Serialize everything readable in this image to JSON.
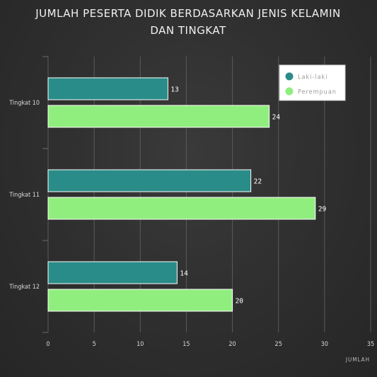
{
  "chart_data": {
    "type": "bar",
    "orientation": "horizontal",
    "title_lines": [
      "JUMLAH PESERTA DIDIK BERDASARKAN JENIS KELAMIN",
      "DAN TINGKAT"
    ],
    "categories": [
      "Tingkat 10",
      "Tingkat 11",
      "Tingkat 12"
    ],
    "series": [
      {
        "name": "Laki-laki",
        "color": "#2a8c88",
        "values": [
          13,
          22,
          14
        ]
      },
      {
        "name": "Perempuan",
        "color": "#90ee7e",
        "values": [
          24,
          29,
          20
        ]
      }
    ],
    "xlabel": "JUMLAH",
    "xlim": [
      0,
      35
    ],
    "xticks": [
      0,
      5,
      10,
      15,
      20,
      25,
      30,
      35
    ],
    "grid": true,
    "legend_position": "top-right"
  }
}
